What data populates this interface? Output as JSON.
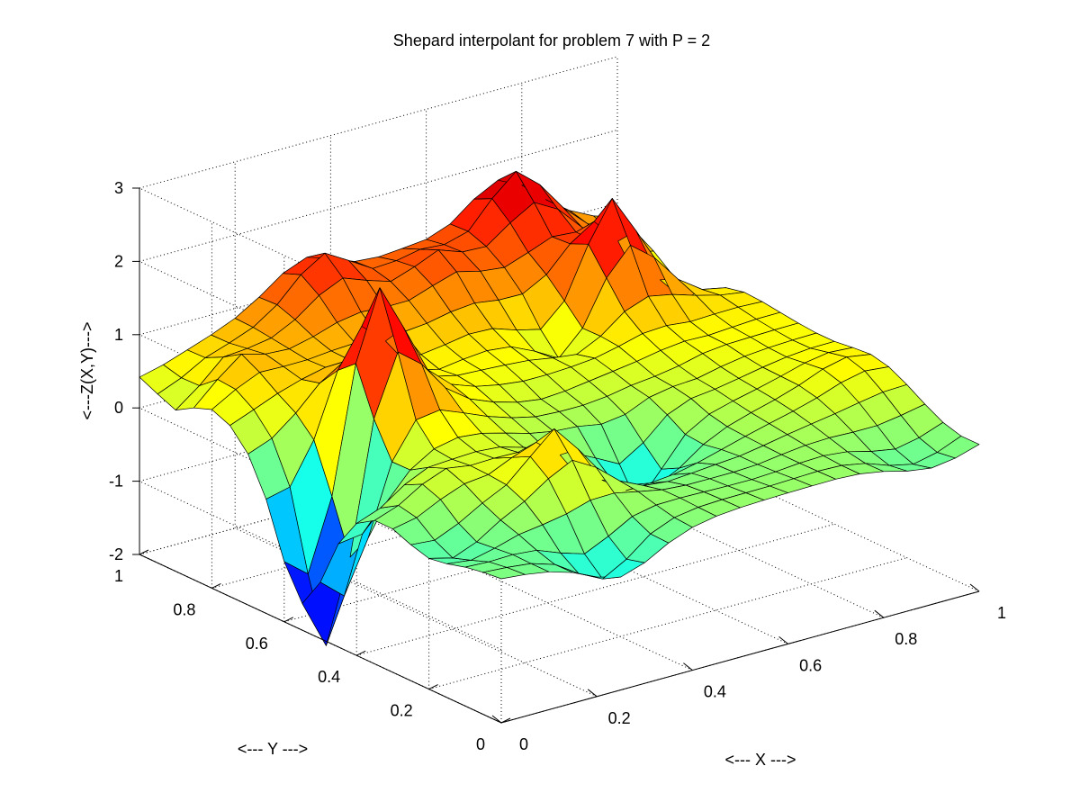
{
  "chart_data": {
    "type": "surface",
    "title": "Shepard interpolant for problem 7 with P = 2",
    "xlabel": "<--- X --->",
    "ylabel": "<--- Y --->",
    "zlabel": "<---Z(X,Y)--->",
    "xlim": [
      0,
      1
    ],
    "ylim": [
      0,
      1
    ],
    "zlim": [
      -2,
      3
    ],
    "xticks": [
      0,
      0.2,
      0.4,
      0.6,
      0.8,
      1
    ],
    "yticks": [
      0,
      0.2,
      0.4,
      0.6,
      0.8,
      1
    ],
    "zticks": [
      -2,
      -1,
      0,
      1,
      2,
      3
    ],
    "x_tick_labels": [
      "0",
      "0.2",
      "0.4",
      "0.6",
      "0.8",
      "1"
    ],
    "y_tick_labels": [
      "0",
      "0.2",
      "0.4",
      "0.6",
      "0.8",
      "1"
    ],
    "z_tick_labels": [
      "-2",
      "-1",
      "0",
      "1",
      "2",
      "3"
    ],
    "colormap": "jet",
    "grid": true,
    "grid_size": 21,
    "data_points": [
      {
        "x": 0.2,
        "y": 0.6,
        "z": 2.2
      },
      {
        "x": 0.8,
        "y": 0.75,
        "z": 2.0
      },
      {
        "x": 0.05,
        "y": 0.55,
        "z": -2.3
      },
      {
        "x": 0.3,
        "y": 0.25,
        "z": 0.9
      },
      {
        "x": 0.55,
        "y": 0.9,
        "z": 1.4
      },
      {
        "x": 0.35,
        "y": 0.95,
        "z": 1.6
      },
      {
        "x": 0.75,
        "y": 0.95,
        "z": 2.0
      },
      {
        "x": 0.95,
        "y": 0.3,
        "z": 0.6
      },
      {
        "x": 0.1,
        "y": 0.85,
        "z": 0.9
      },
      {
        "x": 0.5,
        "y": 0.5,
        "z": 0.2
      },
      {
        "x": 0.6,
        "y": 0.15,
        "z": 0.0
      },
      {
        "x": 0.45,
        "y": 0.3,
        "z": -0.4
      },
      {
        "x": 0.7,
        "y": 0.45,
        "z": 0.3
      },
      {
        "x": 0.25,
        "y": 0.05,
        "z": -0.6
      },
      {
        "x": 0.05,
        "y": 0.2,
        "z": -0.3
      },
      {
        "x": 0.9,
        "y": 0.05,
        "z": -0.2
      },
      {
        "x": 0.0,
        "y": 0.9,
        "z": 0.2
      },
      {
        "x": 0.15,
        "y": 0.35,
        "z": 0.4
      },
      {
        "x": 0.85,
        "y": 0.55,
        "z": 0.5
      },
      {
        "x": 0.65,
        "y": 0.7,
        "z": 0.2
      },
      {
        "x": 0.4,
        "y": 0.7,
        "z": 0.5
      },
      {
        "x": 0.95,
        "y": 0.8,
        "z": 0.1
      },
      {
        "x": 0.55,
        "y": 0.35,
        "z": -0.8
      }
    ],
    "shepard_power": 2
  }
}
